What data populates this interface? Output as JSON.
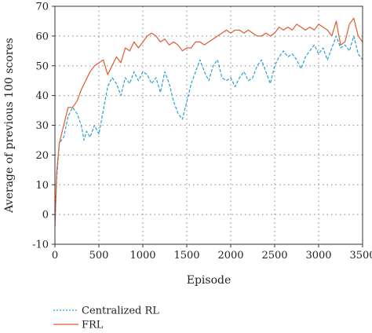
{
  "chart_data": {
    "type": "line",
    "title": "",
    "xlabel": "Episode",
    "ylabel": "Average of previous 100 scores",
    "xlim": [
      0,
      3500
    ],
    "ylim": [
      -10,
      70
    ],
    "xticks": [
      0,
      500,
      1000,
      1500,
      2000,
      2500,
      3000,
      3500
    ],
    "yticks": [
      -10,
      0,
      10,
      20,
      30,
      40,
      50,
      60,
      70
    ],
    "grid": true,
    "grid_style": "dotted",
    "legend_position": "below-left",
    "series": [
      {
        "name": "Centralized RL",
        "color": "#2a9fd6",
        "dash": "dashed",
        "x": [
          0,
          20,
          50,
          100,
          150,
          200,
          250,
          300,
          330,
          360,
          400,
          450,
          500,
          550,
          600,
          650,
          700,
          750,
          800,
          850,
          900,
          950,
          1000,
          1050,
          1100,
          1150,
          1200,
          1250,
          1300,
          1350,
          1400,
          1450,
          1500,
          1550,
          1600,
          1650,
          1700,
          1750,
          1800,
          1850,
          1900,
          1950,
          2000,
          2050,
          2100,
          2150,
          2200,
          2250,
          2300,
          2350,
          2400,
          2450,
          2500,
          2550,
          2600,
          2650,
          2700,
          2750,
          2800,
          2850,
          2900,
          2950,
          3000,
          3050,
          3100,
          3150,
          3200,
          3250,
          3300,
          3350,
          3400,
          3450,
          3500
        ],
        "values": [
          -4,
          12,
          24,
          26,
          33,
          36,
          34,
          30,
          25,
          28,
          26,
          30,
          27,
          35,
          43,
          46,
          44,
          40,
          46,
          44,
          48,
          45,
          48,
          47,
          44,
          46,
          41,
          48,
          44,
          38,
          34,
          32,
          38,
          44,
          48,
          52,
          48,
          45,
          50,
          52,
          46,
          45,
          46,
          43,
          46,
          48,
          45,
          46,
          50,
          52,
          48,
          44,
          50,
          53,
          55,
          53,
          54,
          52,
          49,
          53,
          55,
          57,
          54,
          56,
          52,
          56,
          60,
          56,
          57,
          55,
          60,
          54,
          52
        ]
      },
      {
        "name": "FRL",
        "color": "#e05a2b",
        "dash": "solid",
        "x": [
          0,
          20,
          50,
          100,
          150,
          200,
          250,
          300,
          350,
          400,
          450,
          500,
          550,
          600,
          650,
          700,
          750,
          800,
          850,
          900,
          950,
          1000,
          1050,
          1100,
          1150,
          1200,
          1250,
          1300,
          1350,
          1400,
          1450,
          1500,
          1550,
          1600,
          1650,
          1700,
          1750,
          1800,
          1850,
          1900,
          1950,
          2000,
          2050,
          2100,
          2150,
          2200,
          2250,
          2300,
          2350,
          2400,
          2450,
          2500,
          2550,
          2600,
          2650,
          2700,
          2750,
          2800,
          2850,
          2900,
          2950,
          3000,
          3050,
          3100,
          3150,
          3200,
          3250,
          3300,
          3350,
          3400,
          3450,
          3500
        ],
        "values": [
          -4,
          14,
          24,
          30,
          36,
          36,
          38,
          42,
          45,
          48,
          50,
          51,
          52,
          47,
          50,
          53,
          51,
          56,
          55,
          58,
          56,
          58,
          60,
          61,
          60,
          58,
          59,
          57,
          58,
          57,
          55,
          56,
          56,
          58,
          58,
          57,
          58,
          59,
          60,
          61,
          62,
          61,
          62,
          62,
          61,
          62,
          61,
          60,
          60,
          61,
          60,
          61,
          63,
          62,
          63,
          62,
          64,
          63,
          62,
          63,
          62,
          64,
          63,
          62,
          60,
          65,
          57,
          58,
          64,
          66,
          60,
          58
        ]
      }
    ]
  }
}
